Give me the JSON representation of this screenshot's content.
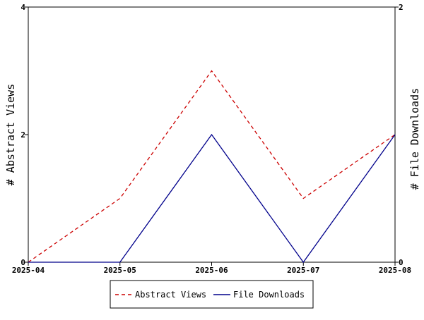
{
  "chart_data": {
    "type": "line",
    "title": "",
    "x": [
      "2025-04",
      "2025-05",
      "2025-06",
      "2025-07",
      "2025-08"
    ],
    "xlabel": "",
    "ylabel_left": "# Abstract Views",
    "ylabel_right": "# File Downloads",
    "ylim_left": [
      0,
      4
    ],
    "ylim_right": [
      0,
      2
    ],
    "yticks_left": [
      0,
      2,
      4
    ],
    "yticks_right": [
      0,
      2
    ],
    "grid": false,
    "legend_position": "bottom-center",
    "series": [
      {
        "name": "Abstract Views",
        "axis": "left",
        "values": [
          0,
          1,
          3,
          1,
          2
        ],
        "color": "#cc0000",
        "style": "dashed"
      },
      {
        "name": "File Downloads",
        "axis": "right",
        "values": [
          0,
          0,
          1,
          0,
          1
        ],
        "color": "#00008b",
        "style": "solid"
      }
    ]
  }
}
